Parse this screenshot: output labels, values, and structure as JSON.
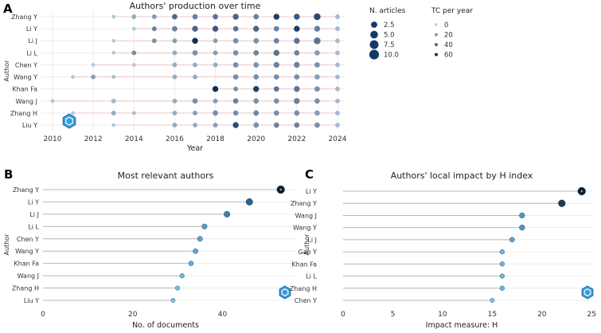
{
  "colors": {
    "dark": "#0d2f5a",
    "light": "#c4d4e6",
    "mid": "#5aa7d6",
    "grid": "#ececec",
    "line_a": "#f2c6cc",
    "stem": "#b8b8b8",
    "logo": "#3a9ad9"
  },
  "chart_data": [
    {
      "panel_label": "A",
      "type": "scatter",
      "title": "Authors' production over time",
      "xlabel": "Year",
      "ylabel": "Author",
      "xlim": [
        2010,
        2024
      ],
      "x_ticks": [
        2010,
        2012,
        2014,
        2016,
        2018,
        2020,
        2022,
        2024
      ],
      "authors": [
        "Zhang Y",
        "Li Y",
        "Li J",
        "Li L",
        "Chen Y",
        "Wang Y",
        "Khan Fa",
        "Wang J",
        "Zhang H",
        "Liu Y"
      ],
      "spans": [
        [
          2013,
          2024
        ],
        [
          2014,
          2024
        ],
        [
          2013,
          2024
        ],
        [
          2013,
          2024
        ],
        [
          2012,
          2024
        ],
        [
          2011,
          2024
        ],
        [
          2018,
          2024
        ],
        [
          2010,
          2024
        ],
        [
          2011,
          2024
        ],
        [
          2013,
          2024
        ]
      ],
      "points": [
        {
          "author": "Zhang Y",
          "year": 2013,
          "articles": 1,
          "tc": 5
        },
        {
          "author": "Zhang Y",
          "year": 2014,
          "articles": 2,
          "tc": 15
        },
        {
          "author": "Zhang Y",
          "year": 2015,
          "articles": 2,
          "tc": 20
        },
        {
          "author": "Zhang Y",
          "year": 2016,
          "articles": 3,
          "tc": 40
        },
        {
          "author": "Zhang Y",
          "year": 2017,
          "articles": 3,
          "tc": 30
        },
        {
          "author": "Zhang Y",
          "year": 2018,
          "articles": 3,
          "tc": 35
        },
        {
          "author": "Zhang Y",
          "year": 2019,
          "articles": 4,
          "tc": 40
        },
        {
          "author": "Zhang Y",
          "year": 2020,
          "articles": 3,
          "tc": 30
        },
        {
          "author": "Zhang Y",
          "year": 2021,
          "articles": 4,
          "tc": 55
        },
        {
          "author": "Zhang Y",
          "year": 2022,
          "articles": 4,
          "tc": 45
        },
        {
          "author": "Zhang Y",
          "year": 2023,
          "articles": 6,
          "tc": 50
        },
        {
          "author": "Zhang Y",
          "year": 2024,
          "articles": 2,
          "tc": 10
        },
        {
          "author": "Li Y",
          "year": 2014,
          "articles": 1,
          "tc": 5
        },
        {
          "author": "Li Y",
          "year": 2015,
          "articles": 2,
          "tc": 30
        },
        {
          "author": "Li Y",
          "year": 2016,
          "articles": 3,
          "tc": 30
        },
        {
          "author": "Li Y",
          "year": 2017,
          "articles": 4,
          "tc": 40
        },
        {
          "author": "Li Y",
          "year": 2018,
          "articles": 4,
          "tc": 45
        },
        {
          "author": "Li Y",
          "year": 2019,
          "articles": 3,
          "tc": 35
        },
        {
          "author": "Li Y",
          "year": 2020,
          "articles": 4,
          "tc": 40
        },
        {
          "author": "Li Y",
          "year": 2021,
          "articles": 3,
          "tc": 30
        },
        {
          "author": "Li Y",
          "year": 2022,
          "articles": 4,
          "tc": 55
        },
        {
          "author": "Li Y",
          "year": 2023,
          "articles": 4,
          "tc": 30
        },
        {
          "author": "Li Y",
          "year": 2024,
          "articles": 2,
          "tc": 10
        },
        {
          "author": "Li J",
          "year": 2013,
          "articles": 1,
          "tc": 5
        },
        {
          "author": "Li J",
          "year": 2015,
          "articles": 2,
          "tc": 25
        },
        {
          "author": "Li J",
          "year": 2016,
          "articles": 2,
          "tc": 20
        },
        {
          "author": "Li J",
          "year": 2017,
          "articles": 4,
          "tc": 60
        },
        {
          "author": "Li J",
          "year": 2018,
          "articles": 2,
          "tc": 20
        },
        {
          "author": "Li J",
          "year": 2019,
          "articles": 3,
          "tc": 25
        },
        {
          "author": "Li J",
          "year": 2020,
          "articles": 3,
          "tc": 25
        },
        {
          "author": "Li J",
          "year": 2021,
          "articles": 3,
          "tc": 30
        },
        {
          "author": "Li J",
          "year": 2022,
          "articles": 4,
          "tc": 35
        },
        {
          "author": "Li J",
          "year": 2023,
          "articles": 6,
          "tc": 35
        },
        {
          "author": "Li J",
          "year": 2024,
          "articles": 2,
          "tc": 10
        },
        {
          "author": "Li L",
          "year": 2013,
          "articles": 1,
          "tc": 5
        },
        {
          "author": "Li L",
          "year": 2014,
          "articles": 2,
          "tc": 25
        },
        {
          "author": "Li L",
          "year": 2016,
          "articles": 2,
          "tc": 15
        },
        {
          "author": "Li L",
          "year": 2017,
          "articles": 3,
          "tc": 25
        },
        {
          "author": "Li L",
          "year": 2018,
          "articles": 2,
          "tc": 20
        },
        {
          "author": "Li L",
          "year": 2019,
          "articles": 3,
          "tc": 25
        },
        {
          "author": "Li L",
          "year": 2020,
          "articles": 3,
          "tc": 30
        },
        {
          "author": "Li L",
          "year": 2021,
          "articles": 4,
          "tc": 35
        },
        {
          "author": "Li L",
          "year": 2022,
          "articles": 3,
          "tc": 30
        },
        {
          "author": "Li L",
          "year": 2023,
          "articles": 3,
          "tc": 20
        },
        {
          "author": "Li L",
          "year": 2024,
          "articles": 2,
          "tc": 10
        },
        {
          "author": "Chen Y",
          "year": 2012,
          "articles": 1,
          "tc": 5
        },
        {
          "author": "Chen Y",
          "year": 2014,
          "articles": 1,
          "tc": 5
        },
        {
          "author": "Chen Y",
          "year": 2016,
          "articles": 2,
          "tc": 15
        },
        {
          "author": "Chen Y",
          "year": 2017,
          "articles": 2,
          "tc": 15
        },
        {
          "author": "Chen Y",
          "year": 2018,
          "articles": 2,
          "tc": 15
        },
        {
          "author": "Chen Y",
          "year": 2019,
          "articles": 3,
          "tc": 25
        },
        {
          "author": "Chen Y",
          "year": 2020,
          "articles": 3,
          "tc": 25
        },
        {
          "author": "Chen Y",
          "year": 2021,
          "articles": 4,
          "tc": 30
        },
        {
          "author": "Chen Y",
          "year": 2022,
          "articles": 4,
          "tc": 30
        },
        {
          "author": "Chen Y",
          "year": 2023,
          "articles": 3,
          "tc": 25
        },
        {
          "author": "Chen Y",
          "year": 2024,
          "articles": 2,
          "tc": 10
        },
        {
          "author": "Wang Y",
          "year": 2011,
          "articles": 1,
          "tc": 5
        },
        {
          "author": "Wang Y",
          "year": 2012,
          "articles": 2,
          "tc": 20
        },
        {
          "author": "Wang Y",
          "year": 2013,
          "articles": 1,
          "tc": 10
        },
        {
          "author": "Wang Y",
          "year": 2016,
          "articles": 2,
          "tc": 15
        },
        {
          "author": "Wang Y",
          "year": 2017,
          "articles": 2,
          "tc": 15
        },
        {
          "author": "Wang Y",
          "year": 2019,
          "articles": 3,
          "tc": 25
        },
        {
          "author": "Wang Y",
          "year": 2020,
          "articles": 3,
          "tc": 25
        },
        {
          "author": "Wang Y",
          "year": 2021,
          "articles": 3,
          "tc": 25
        },
        {
          "author": "Wang Y",
          "year": 2022,
          "articles": 3,
          "tc": 25
        },
        {
          "author": "Wang Y",
          "year": 2023,
          "articles": 3,
          "tc": 20
        },
        {
          "author": "Wang Y",
          "year": 2024,
          "articles": 2,
          "tc": 10
        },
        {
          "author": "Khan Fa",
          "year": 2018,
          "articles": 4,
          "tc": 60
        },
        {
          "author": "Khan Fa",
          "year": 2019,
          "articles": 2,
          "tc": 25
        },
        {
          "author": "Khan Fa",
          "year": 2020,
          "articles": 4,
          "tc": 55
        },
        {
          "author": "Khan Fa",
          "year": 2021,
          "articles": 3,
          "tc": 35
        },
        {
          "author": "Khan Fa",
          "year": 2022,
          "articles": 4,
          "tc": 35
        },
        {
          "author": "Khan Fa",
          "year": 2023,
          "articles": 3,
          "tc": 25
        },
        {
          "author": "Khan Fa",
          "year": 2024,
          "articles": 2,
          "tc": 10
        },
        {
          "author": "Wang J",
          "year": 2010,
          "articles": 1,
          "tc": 5
        },
        {
          "author": "Wang J",
          "year": 2013,
          "articles": 2,
          "tc": 10
        },
        {
          "author": "Wang J",
          "year": 2016,
          "articles": 2,
          "tc": 15
        },
        {
          "author": "Wang J",
          "year": 2017,
          "articles": 3,
          "tc": 25
        },
        {
          "author": "Wang J",
          "year": 2018,
          "articles": 2,
          "tc": 20
        },
        {
          "author": "Wang J",
          "year": 2019,
          "articles": 3,
          "tc": 30
        },
        {
          "author": "Wang J",
          "year": 2020,
          "articles": 3,
          "tc": 25
        },
        {
          "author": "Wang J",
          "year": 2021,
          "articles": 3,
          "tc": 25
        },
        {
          "author": "Wang J",
          "year": 2022,
          "articles": 4,
          "tc": 30
        },
        {
          "author": "Wang J",
          "year": 2023,
          "articles": 3,
          "tc": 25
        },
        {
          "author": "Wang J",
          "year": 2024,
          "articles": 2,
          "tc": 10
        },
        {
          "author": "Zhang H",
          "year": 2011,
          "articles": 1,
          "tc": 5
        },
        {
          "author": "Zhang H",
          "year": 2013,
          "articles": 2,
          "tc": 15
        },
        {
          "author": "Zhang H",
          "year": 2014,
          "articles": 1,
          "tc": 10
        },
        {
          "author": "Zhang H",
          "year": 2016,
          "articles": 2,
          "tc": 15
        },
        {
          "author": "Zhang H",
          "year": 2017,
          "articles": 2,
          "tc": 20
        },
        {
          "author": "Zhang H",
          "year": 2018,
          "articles": 3,
          "tc": 25
        },
        {
          "author": "Zhang H",
          "year": 2019,
          "articles": 3,
          "tc": 25
        },
        {
          "author": "Zhang H",
          "year": 2020,
          "articles": 3,
          "tc": 30
        },
        {
          "author": "Zhang H",
          "year": 2021,
          "articles": 3,
          "tc": 25
        },
        {
          "author": "Zhang H",
          "year": 2022,
          "articles": 3,
          "tc": 25
        },
        {
          "author": "Zhang H",
          "year": 2023,
          "articles": 3,
          "tc": 20
        },
        {
          "author": "Zhang H",
          "year": 2024,
          "articles": 2,
          "tc": 10
        },
        {
          "author": "Liu Y",
          "year": 2013,
          "articles": 1,
          "tc": 5
        },
        {
          "author": "Liu Y",
          "year": 2016,
          "articles": 2,
          "tc": 15
        },
        {
          "author": "Liu Y",
          "year": 2017,
          "articles": 2,
          "tc": 15
        },
        {
          "author": "Liu Y",
          "year": 2018,
          "articles": 2,
          "tc": 20
        },
        {
          "author": "Liu Y",
          "year": 2019,
          "articles": 4,
          "tc": 50
        },
        {
          "author": "Liu Y",
          "year": 2020,
          "articles": 3,
          "tc": 25
        },
        {
          "author": "Liu Y",
          "year": 2021,
          "articles": 3,
          "tc": 30
        },
        {
          "author": "Liu Y",
          "year": 2022,
          "articles": 3,
          "tc": 30
        },
        {
          "author": "Liu Y",
          "year": 2023,
          "articles": 3,
          "tc": 25
        },
        {
          "author": "Liu Y",
          "year": 2024,
          "articles": 2,
          "tc": 10
        }
      ],
      "legend_size": {
        "title": "N. articles",
        "values": [
          2.5,
          5.0,
          7.5,
          10.0
        ],
        "labels": [
          "2.5",
          "5.0",
          "7.5",
          "10.0"
        ]
      },
      "legend_color": {
        "title": "TC per year",
        "values": [
          0,
          20,
          40,
          60
        ],
        "labels": [
          "0",
          "20",
          "40",
          "60"
        ]
      }
    },
    {
      "panel_label": "B",
      "type": "scatter",
      "title": "Most relevant authors",
      "xlabel": "No. of documents",
      "ylabel": "Author",
      "xlim": [
        0,
        55
      ],
      "x_ticks": [
        0,
        20,
        40
      ],
      "categories": [
        "Zhang Y",
        "Li Y",
        "Li J",
        "Li L",
        "Chen Y",
        "Wang Y",
        "Khan Fa",
        "Wang J",
        "Zhang H",
        "Liu Y"
      ],
      "values": [
        53,
        46,
        41,
        36,
        35,
        34,
        33,
        31,
        30,
        29
      ]
    },
    {
      "panel_label": "C",
      "type": "scatter",
      "title": "Authors' local impact by H index",
      "xlabel": "Impact measure: H",
      "ylabel": "Author",
      "xlim": [
        0,
        24.5
      ],
      "x_ticks": [
        0,
        5,
        10,
        15,
        20,
        25
      ],
      "categories": [
        "Li Y",
        "Zhang Y",
        "Wang J",
        "Wang Y",
        "Li J",
        "Gao Y",
        "Khan Fa",
        "Li L",
        "Zhang H",
        "Chen Y"
      ],
      "values": [
        24,
        22,
        18,
        18,
        17,
        16,
        16,
        16,
        16,
        15
      ]
    }
  ]
}
